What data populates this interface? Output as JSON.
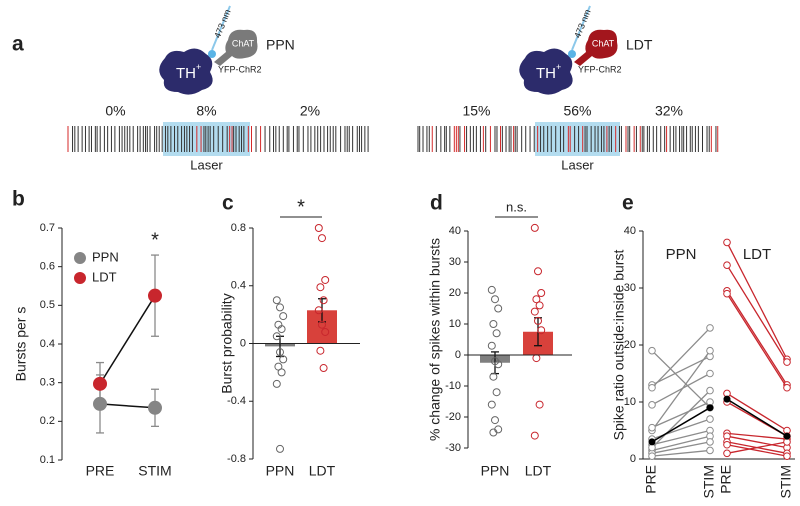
{
  "panel_a": {
    "label": "a",
    "left": {
      "region": "PPN",
      "cell": "TH",
      "cell_sup": "+",
      "partner": "ChAT",
      "opsin": "YFP-ChR2",
      "wavelength": "473 nm",
      "percentages": [
        "0%",
        "8%",
        "2%"
      ],
      "stim_label": "Laser"
    },
    "right": {
      "region": "LDT",
      "cell": "TH",
      "cell_sup": "+",
      "partner": "ChAT",
      "opsin": "YFP-ChR2",
      "wavelength": "473 nm",
      "percentages": [
        "15%",
        "56%",
        "32%"
      ],
      "stim_label": "Laser"
    }
  },
  "chart_data": [
    {
      "type": "line",
      "label": "b",
      "categories": [
        "PRE",
        "STIM"
      ],
      "ylabel": "Bursts per s",
      "ylim": [
        0.1,
        0.7
      ],
      "yticks": [
        0.1,
        0.2,
        0.3,
        0.4,
        0.5,
        0.6,
        0.7
      ],
      "legend": "upper left",
      "significance": "*",
      "series": [
        {
          "name": "PPN",
          "color": "#858585",
          "values": [
            0.245,
            0.235
          ],
          "errors": [
            0.075,
            0.048
          ]
        },
        {
          "name": "LDT",
          "color": "#c8262d",
          "values": [
            0.297,
            0.525
          ],
          "errors": [
            0.055,
            0.105
          ]
        }
      ]
    },
    {
      "type": "bar_scatter",
      "label": "c",
      "categories": [
        "PPN",
        "LDT"
      ],
      "ylabel": "Burst probability",
      "ylim": [
        -0.8,
        0.8
      ],
      "yticks": [
        -0.8,
        -0.4,
        0,
        0.4,
        0.8
      ],
      "significance": "*",
      "values": [
        -0.02,
        0.23
      ],
      "errors": [
        0.07,
        0.08
      ],
      "colors": [
        "#7f7f7f",
        "#d8413b"
      ],
      "point_colors": [
        "#666666",
        "#c8262d"
      ],
      "points": [
        [
          0.3,
          0.25,
          0.19,
          0.13,
          0.1,
          0.05,
          -0.06,
          -0.11,
          -0.16,
          -0.2,
          -0.28,
          -0.73
        ],
        [
          0.8,
          0.73,
          0.44,
          0.39,
          0.3,
          0.23,
          0.13,
          0.08,
          -0.05,
          -0.17
        ]
      ]
    },
    {
      "type": "bar_scatter",
      "label": "d",
      "categories": [
        "PPN",
        "LDT"
      ],
      "ylabel": "% change of spikes within bursts",
      "ylim": [
        -30,
        40
      ],
      "yticks": [
        -30,
        -20,
        -10,
        0,
        10,
        20,
        30,
        40
      ],
      "significance": "n.s.",
      "values": [
        -2.5,
        7.5
      ],
      "errors": [
        3.5,
        4.5
      ],
      "colors": [
        "#7f7f7f",
        "#d8413b"
      ],
      "point_colors": [
        "#666666",
        "#c8262d"
      ],
      "points": [
        [
          21,
          18,
          15,
          10,
          7,
          3,
          -2,
          -3,
          -7,
          -12,
          -16,
          -21,
          -24,
          -25
        ],
        [
          41,
          27,
          20,
          18,
          16,
          14,
          11,
          8,
          -1,
          -16,
          -26
        ]
      ]
    },
    {
      "type": "paired",
      "label": "e",
      "ylabel": "Spike ratio outside:inside burst",
      "ylim": [
        0,
        40
      ],
      "yticks": [
        0,
        10,
        20,
        30,
        40
      ],
      "groups": [
        {
          "name": "PPN",
          "categories": [
            "PRE",
            "STIM"
          ],
          "color": "#8c8c8c",
          "mean_color": "#000000",
          "pairs": [
            [
              19,
              9
            ],
            [
              13,
              18
            ],
            [
              12.5,
              23
            ],
            [
              9.5,
              15
            ],
            [
              5,
              19
            ],
            [
              5.5,
              10
            ],
            [
              3.5,
              7
            ],
            [
              2.5,
              5
            ],
            [
              1.5,
              4
            ],
            [
              1,
              3
            ],
            [
              0.5,
              1.5
            ],
            [
              2,
              12
            ]
          ],
          "mean": [
            3,
            9
          ]
        },
        {
          "name": "LDT",
          "categories": [
            "PRE",
            "STIM"
          ],
          "color": "#c8262d",
          "mean_color": "#000000",
          "pairs": [
            [
              38,
              17.5
            ],
            [
              34,
              17
            ],
            [
              29.5,
              13
            ],
            [
              29,
              12.5
            ],
            [
              11.5,
              5
            ],
            [
              10,
              4
            ],
            [
              4.5,
              3.5
            ],
            [
              4,
              2
            ],
            [
              3,
              1
            ],
            [
              2.5,
              0.5
            ],
            [
              1,
              3
            ]
          ],
          "mean": [
            10.5,
            4
          ]
        }
      ]
    }
  ]
}
